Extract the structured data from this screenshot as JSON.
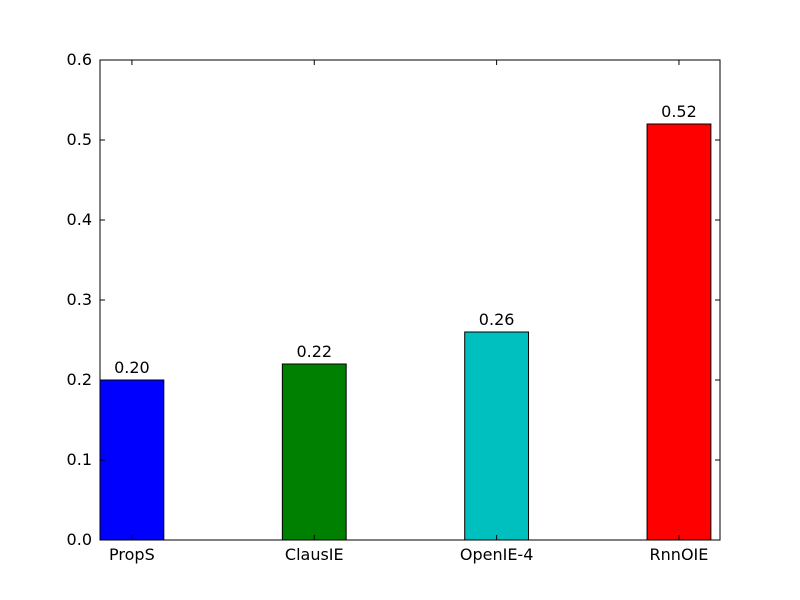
{
  "chart_data": {
    "type": "bar",
    "title": "",
    "xlabel": "",
    "ylabel": "",
    "categories": [
      "PropS",
      "ClausIE",
      "OpenIE-4",
      "RnnOIE"
    ],
    "values": [
      0.2,
      0.22,
      0.26,
      0.52
    ],
    "data_labels": [
      "0.20",
      "0.22",
      "0.26",
      "0.52"
    ],
    "colors": [
      "#0000ff",
      "#008000",
      "#00bfbf",
      "#ff0000"
    ],
    "ylim": [
      0,
      0.6
    ],
    "yticks": [
      {
        "value": 0.0,
        "label": "0.0"
      },
      {
        "value": 0.1,
        "label": "0.1"
      },
      {
        "value": 0.2,
        "label": "0.2"
      },
      {
        "value": 0.3,
        "label": "0.3"
      },
      {
        "value": 0.4,
        "label": "0.4"
      },
      {
        "value": 0.5,
        "label": "0.5"
      },
      {
        "value": 0.6,
        "label": "0.6"
      }
    ],
    "grid": false,
    "legend": "none"
  }
}
